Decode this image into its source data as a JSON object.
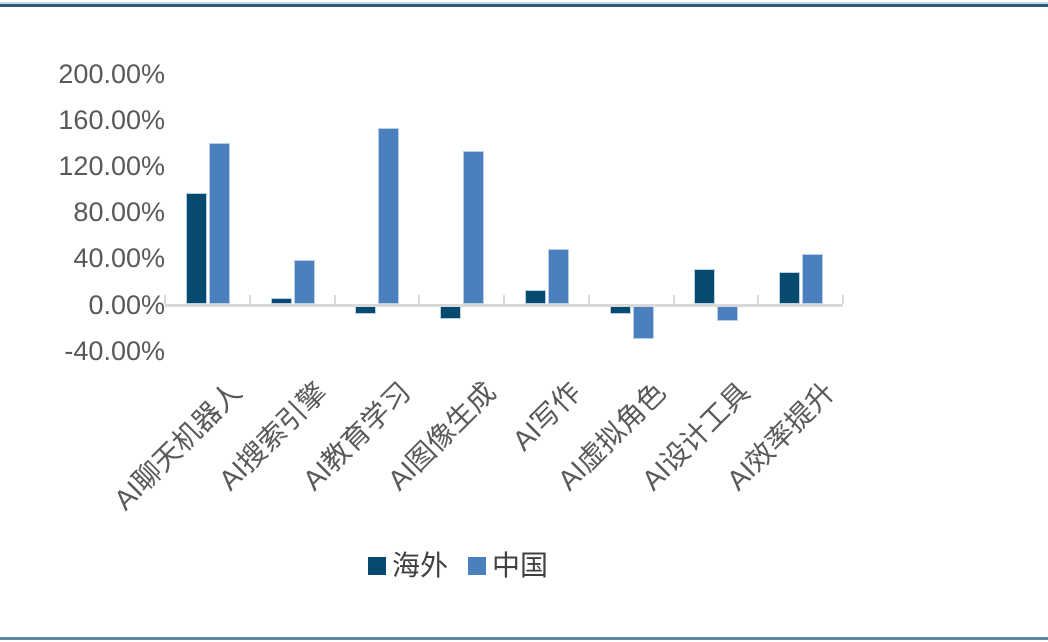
{
  "page": {
    "background": "#ffffff"
  },
  "accents": {
    "top_line_light": "#c9d9e4",
    "top_line_dark": "#2b5d7c",
    "bottom_line": "#5c87a7"
  },
  "chart_data": {
    "type": "bar",
    "title": "",
    "xlabel": "",
    "ylabel": "",
    "categories": [
      "AI聊天机器人",
      "AI搜索引擎",
      "AI教育学习",
      "AI图像生成",
      "AI写作",
      "AI虚拟角色",
      "AI设计工具",
      "AI效率提升"
    ],
    "series": [
      {
        "name": "海外",
        "color": "#074a70",
        "values": [
          97,
          6,
          -8,
          -13,
          13,
          -8,
          31,
          28
        ]
      },
      {
        "name": "中国",
        "color": "#4a80bd",
        "values": [
          140,
          39,
          153,
          133,
          48,
          -30,
          -14,
          44
        ]
      }
    ],
    "values_unit": "percent",
    "y_axis": {
      "tick_labels": [
        "200.00%",
        "160.00%",
        "120.00%",
        "80.00%",
        "40.00%",
        "0.00%",
        "-40.00%"
      ],
      "tick_values": [
        200,
        160,
        120,
        80,
        40,
        0,
        -40
      ],
      "ylim": [
        -40,
        200
      ],
      "label_color": "#595959"
    },
    "x_axis": {
      "label_color": "#595959",
      "axis_line_color": "#d9d9d9",
      "label_rotation_deg": -45
    },
    "legend": {
      "position": "bottom",
      "text_color": "#404040"
    },
    "grid": false,
    "bar_border_color": "#b9cfe3"
  }
}
